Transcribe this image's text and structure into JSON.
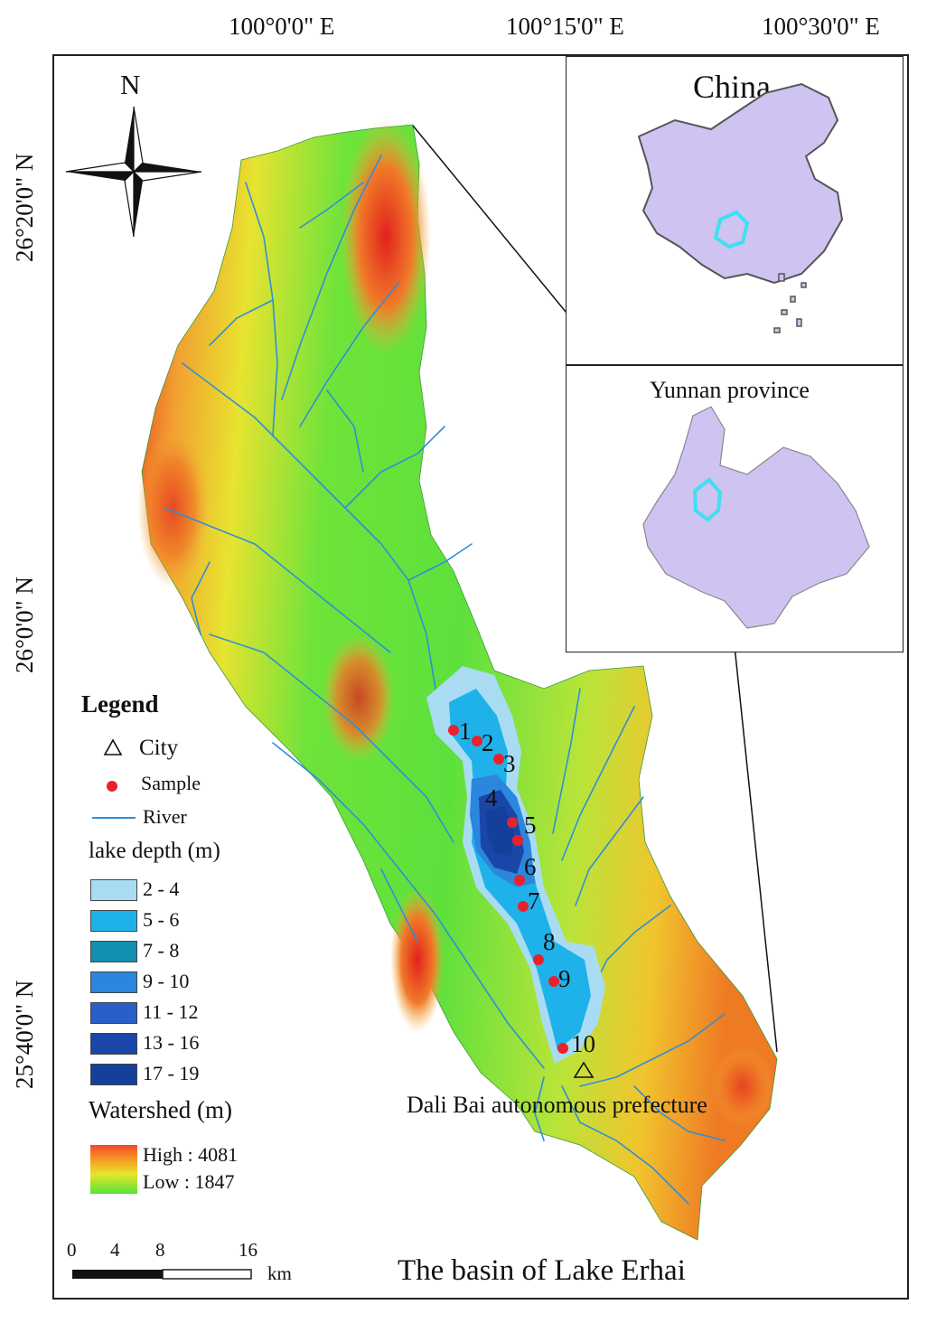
{
  "coordinates": {
    "top": [
      "100°0'0\" E",
      "100°15'0\" E",
      "100°30'0\" E"
    ],
    "left": [
      "26°20'0\" N",
      "26°0'0\" N",
      "25°40'0\" N"
    ]
  },
  "compass": {
    "label": "N",
    "icon": "compass-rose-icon"
  },
  "insets": {
    "china": {
      "title": "China",
      "fill": "#cfc3f1",
      "highlight": "#3ee0f0"
    },
    "yunnan": {
      "title": "Yunnan province",
      "fill": "#cfc3f1",
      "highlight": "#3ee0f0"
    }
  },
  "samples": [
    "1",
    "2",
    "3",
    "4",
    "5",
    "6",
    "7",
    "8",
    "9",
    "10"
  ],
  "city_label": "Dali Bai autonomous prefecture",
  "map_title": "The basin of Lake Erhai",
  "legend": {
    "title": "Legend",
    "city": "City",
    "sample": "Sample",
    "river": "River",
    "depth_title": "lake depth (m)",
    "depth_classes": [
      {
        "label": "2 - 4",
        "color": "#a9dcf3"
      },
      {
        "label": "5 - 6",
        "color": "#1fb2ea"
      },
      {
        "label": "7 - 8",
        "color": "#1290b2"
      },
      {
        "label": "9 - 10",
        "color": "#2b86de"
      },
      {
        "label": "11 - 12",
        "color": "#2a5fc8"
      },
      {
        "label": "13 - 16",
        "color": "#1a46a8"
      },
      {
        "label": "17 - 19",
        "color": "#14409c"
      }
    ],
    "watershed_title": "Watershed (m)",
    "watershed_high": "High : 4081",
    "watershed_low": "Low : 1847",
    "watershed_colors": [
      "#f24a2a",
      "#f5a623",
      "#e6e62a",
      "#56e23a"
    ]
  },
  "scale_bar": {
    "ticks": [
      "0",
      "4",
      "8",
      "16"
    ],
    "unit": "km"
  },
  "colors": {
    "sample_dot": "#e8222a",
    "river": "#2f8fd8"
  }
}
